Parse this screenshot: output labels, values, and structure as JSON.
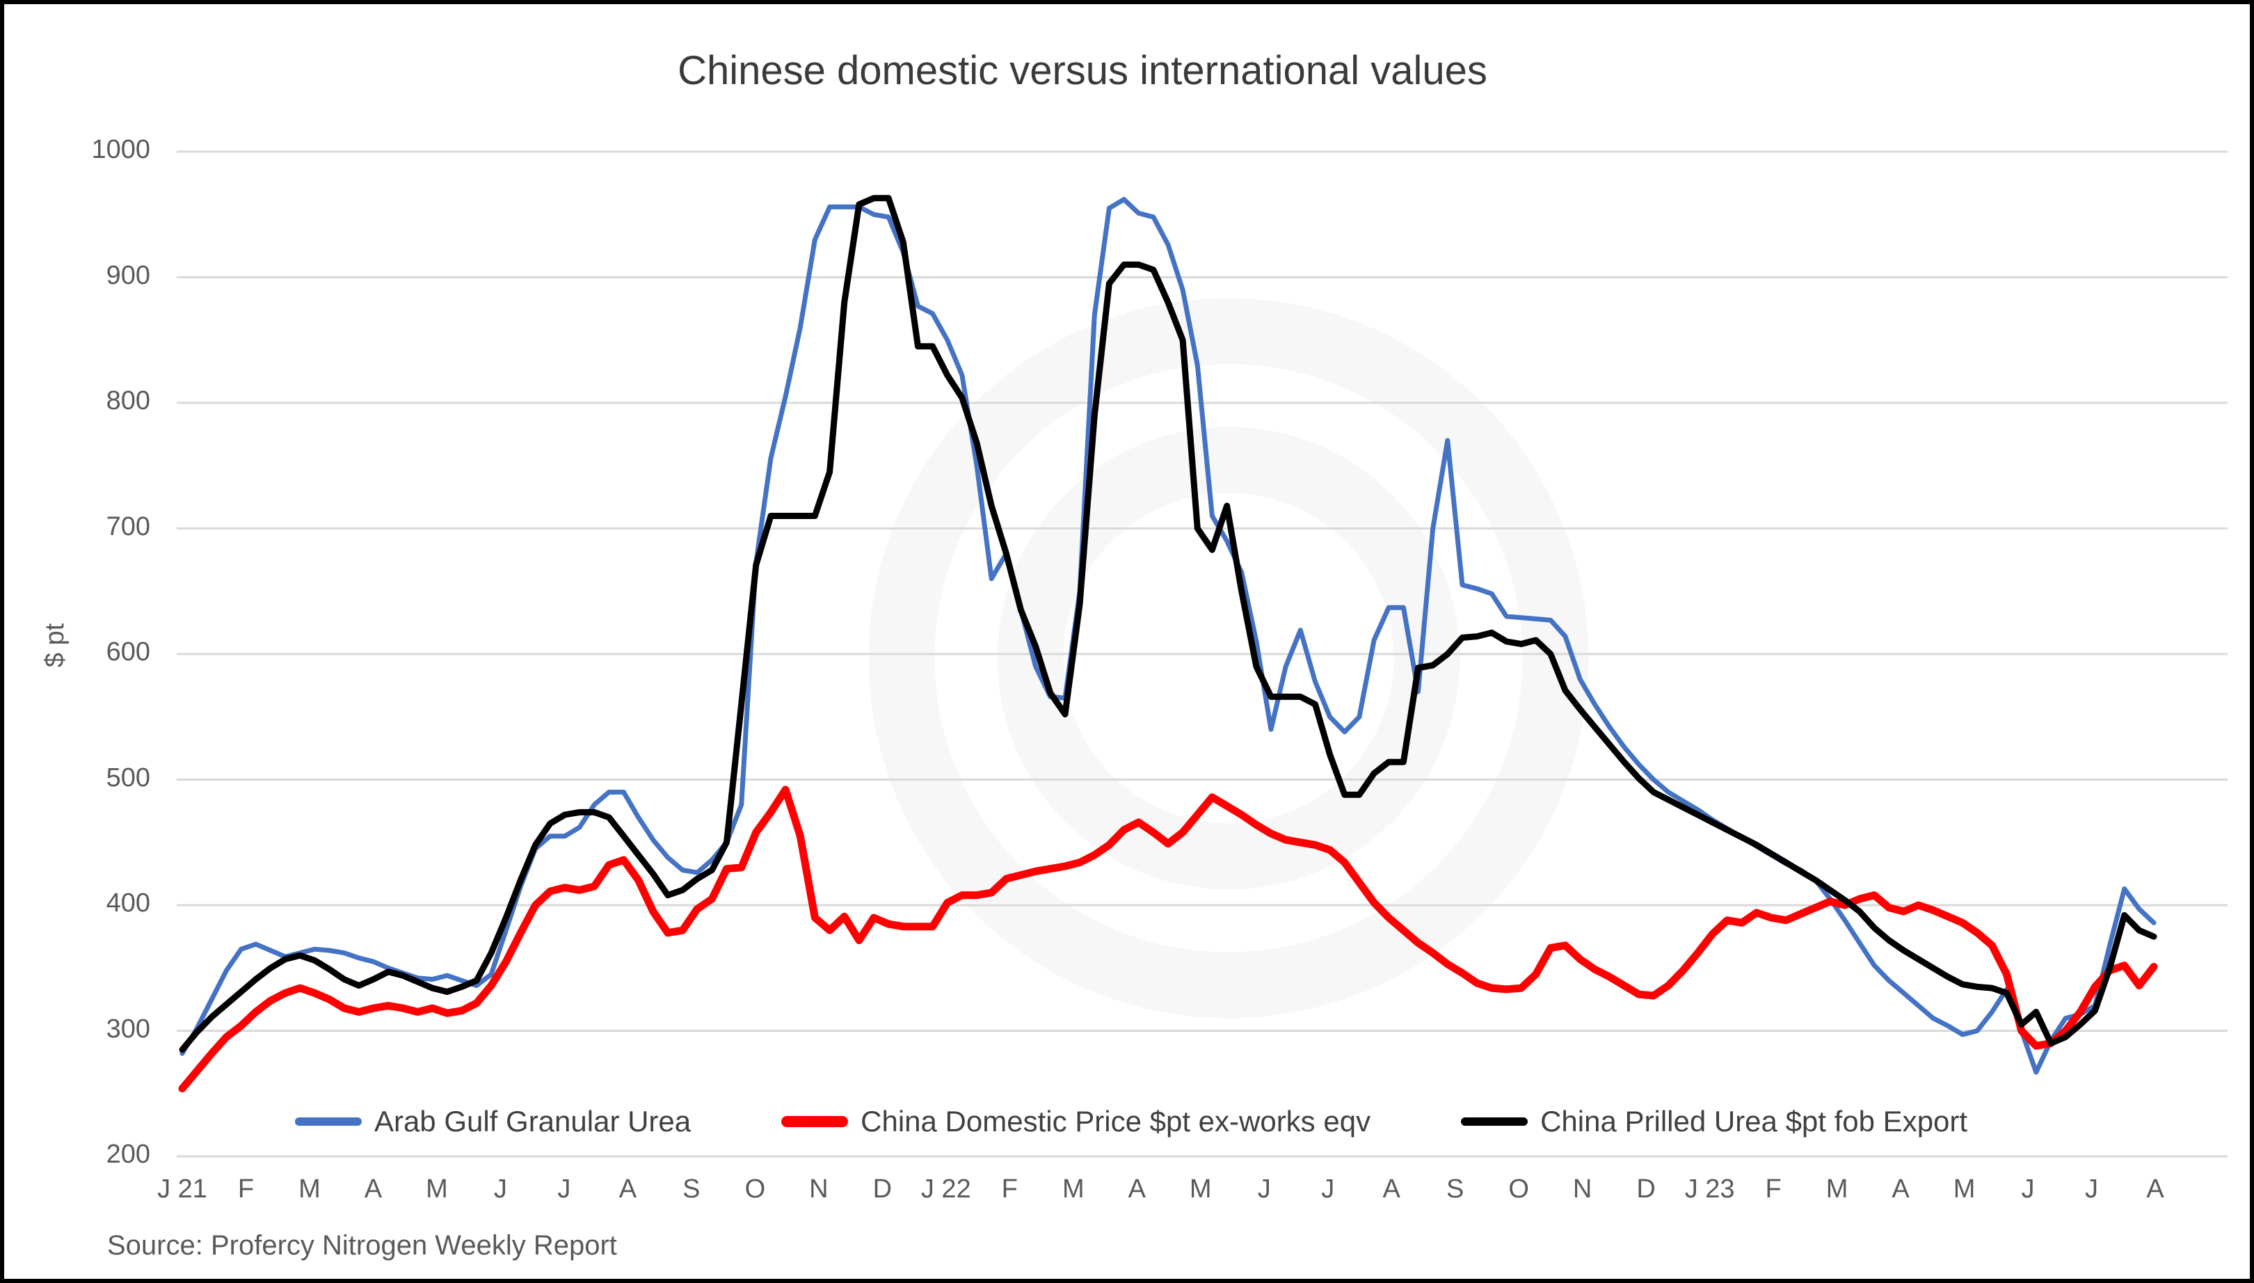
{
  "chart_data": {
    "type": "line",
    "title": "Chinese domestic versus international values",
    "xlabel": "",
    "ylabel": "$ pt",
    "ylim": [
      200,
      1000
    ],
    "yticks": [
      200,
      300,
      400,
      500,
      600,
      700,
      800,
      900,
      1000
    ],
    "grid": true,
    "legend_position": "bottom",
    "sampling": "weekly points, Jan 2021 - Aug 2023",
    "x_tick_labels": [
      "J 21",
      "F",
      "M",
      "A",
      "M",
      "J",
      "J",
      "A",
      "S",
      "O",
      "N",
      "D",
      "J 22",
      "F",
      "M",
      "A",
      "M",
      "J",
      "J",
      "A",
      "S",
      "O",
      "N",
      "D",
      "J 23",
      "F",
      "M",
      "A",
      "M",
      "J",
      "J",
      "A"
    ],
    "series": [
      {
        "name": "Arab Gulf Granular Urea",
        "color": "#4472C4",
        "line_width": 7,
        "values": [
          282,
          302,
          325,
          348,
          365,
          369,
          364,
          359,
          362,
          365,
          364,
          362,
          358,
          355,
          350,
          346,
          342,
          341,
          344,
          340,
          336,
          345,
          380,
          415,
          445,
          455,
          455,
          462,
          480,
          490,
          490,
          470,
          452,
          438,
          428,
          426,
          436,
          450,
          480,
          673,
          756,
          805,
          860,
          930,
          956,
          956,
          956,
          950,
          948,
          920,
          877,
          871,
          850,
          822,
          750,
          660,
          680,
          635,
          590,
          566,
          565,
          650,
          870,
          955,
          962,
          951,
          948,
          926,
          890,
          830,
          710,
          690,
          665,
          610,
          540,
          590,
          619,
          578,
          550,
          538,
          550,
          611,
          637,
          637,
          570,
          700,
          770,
          655,
          652,
          648,
          630,
          629,
          628,
          627,
          614,
          580,
          560,
          542,
          526,
          512,
          500,
          490,
          483,
          476,
          468,
          461,
          454,
          447,
          440,
          433,
          428,
          420,
          405,
          388,
          370,
          352,
          340,
          330,
          320,
          310,
          304,
          297,
          300,
          315,
          333,
          300,
          267,
          292,
          310,
          313,
          320,
          368,
          413,
          397,
          386
        ]
      },
      {
        "name": "China Domestic Price $pt ex-works eqv",
        "color": "#FF0000",
        "line_width": 11,
        "values": [
          254,
          268,
          282,
          295,
          304,
          315,
          324,
          330,
          334,
          330,
          325,
          318,
          315,
          318,
          320,
          318,
          315,
          318,
          314,
          316,
          322,
          336,
          355,
          378,
          400,
          411,
          414,
          412,
          415,
          432,
          436,
          420,
          395,
          378,
          380,
          397,
          405,
          429,
          430,
          458,
          474,
          492,
          455,
          390,
          380,
          391,
          372,
          390,
          385,
          383,
          383,
          383,
          402,
          408,
          408,
          410,
          421,
          424,
          427,
          429,
          431,
          434,
          440,
          448,
          460,
          466,
          458,
          449,
          458,
          472,
          486,
          479,
          472,
          464,
          457,
          452,
          450,
          448,
          444,
          434,
          418,
          402,
          390,
          380,
          370,
          362,
          353,
          346,
          338,
          334,
          333,
          334,
          345,
          366,
          368,
          357,
          349,
          343,
          336,
          329,
          328,
          336,
          348,
          362,
          377,
          388,
          386,
          394,
          390,
          388,
          393,
          398,
          403,
          400,
          405,
          408,
          398,
          395,
          400,
          396,
          391,
          386,
          378,
          368,
          345,
          300,
          288,
          290,
          300,
          315,
          335,
          348,
          352,
          336,
          351
        ]
      },
      {
        "name": "China Prilled Urea $pt fob Export",
        "color": "#000000",
        "line_width": 9,
        "values": [
          285,
          299,
          311,
          321,
          331,
          341,
          350,
          357,
          360,
          356,
          349,
          341,
          336,
          341,
          347,
          344,
          339,
          334,
          331,
          335,
          340,
          362,
          390,
          420,
          448,
          465,
          472,
          474,
          474,
          470,
          455,
          440,
          425,
          408,
          412,
          421,
          428,
          450,
          560,
          671,
          710,
          710,
          710,
          710,
          745,
          880,
          958,
          963,
          963,
          928,
          845,
          845,
          822,
          804,
          768,
          718,
          680,
          635,
          606,
          569,
          552,
          640,
          790,
          895,
          910,
          910,
          906,
          880,
          850,
          700,
          683,
          718,
          650,
          590,
          566,
          566,
          566,
          560,
          520,
          488,
          488,
          505,
          514,
          514,
          589,
          591,
          600,
          613,
          614,
          617,
          610,
          608,
          611,
          600,
          571,
          556,
          542,
          528,
          514,
          501,
          490,
          484,
          478,
          472,
          466,
          460,
          454,
          448,
          441,
          434,
          427,
          420,
          412,
          404,
          395,
          382,
          372,
          364,
          357,
          350,
          343,
          337,
          335,
          334,
          330,
          305,
          315,
          290,
          295,
          305,
          316,
          350,
          392,
          380,
          375
        ]
      }
    ]
  },
  "source_note": "Source: Profercy Nitrogen Weekly Report",
  "colors": {
    "gridline": "#d9d9d9",
    "axis_text": "#595959",
    "title_text": "#3a3a3a",
    "background": "#ffffff",
    "watermark": "#000000"
  }
}
